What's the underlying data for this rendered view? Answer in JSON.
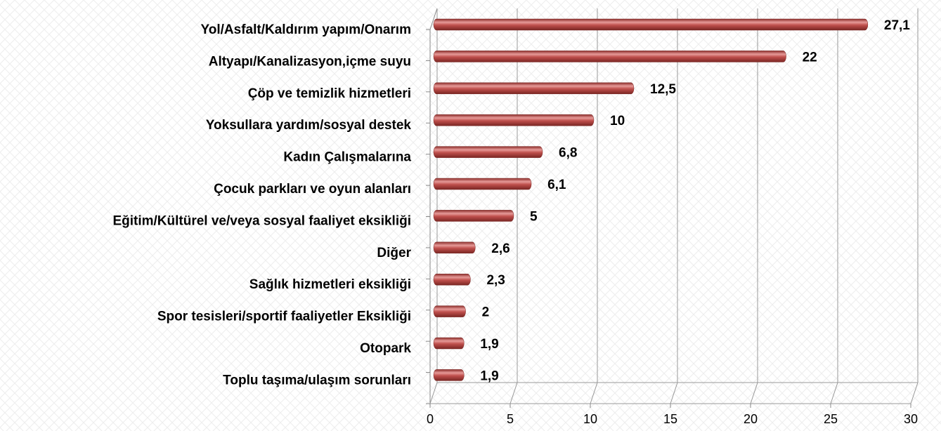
{
  "chart_data": {
    "type": "bar",
    "orientation": "horizontal",
    "categories": [
      "Yol/Asfalt/Kaldırım yapım/Onarım",
      "Altyapı/Kanalizasyon,içme suyu",
      "Çöp ve temizlik hizmetleri",
      "Yoksullara yardım/sosyal destek",
      "Kadın Çalışmalarına",
      "Çocuk parkları ve oyun alanları",
      "Eğitim/Kültürel ve/veya sosyal faaliyet eksikliği",
      "Diğer",
      "Sağlık hizmetleri eksikliği",
      "Spor tesisleri/sportif faaliyetler Eksikliği",
      "Otopark",
      "Toplu taşıma/ulaşım sorunları"
    ],
    "values": [
      27.1,
      22,
      12.5,
      10,
      6.8,
      6.1,
      5,
      2.6,
      2.3,
      2,
      1.9,
      1.9
    ],
    "value_labels": [
      "27,1",
      "22",
      "12,5",
      "10",
      "6,8",
      "6,1",
      "5",
      "2,6",
      "2,3",
      "2",
      "1,9",
      "1,9"
    ],
    "color": "#c0504d",
    "xlim": [
      0,
      30
    ],
    "xticks": [
      0,
      5,
      10,
      15,
      20,
      25,
      30
    ],
    "grid": true
  }
}
